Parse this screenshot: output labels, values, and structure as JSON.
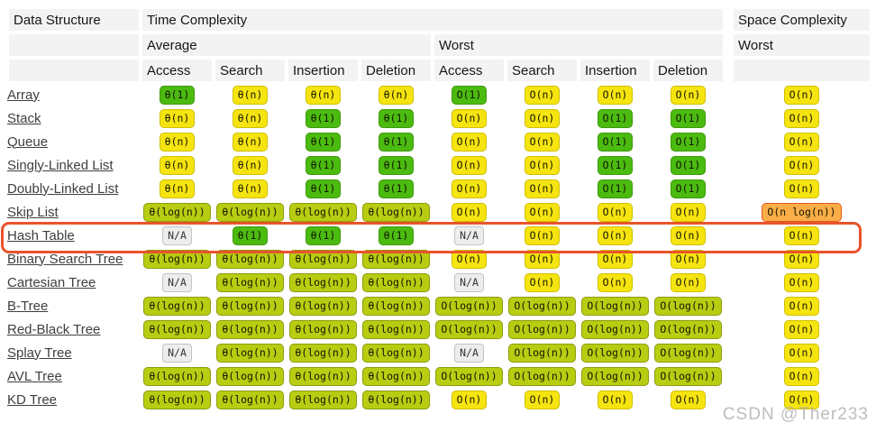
{
  "header": {
    "data_structure": "Data Structure",
    "time_complexity": "Time Complexity",
    "space_complexity": "Space Complexity",
    "average": "Average",
    "worst_time": "Worst",
    "worst_space": "Worst",
    "ops": [
      "Access",
      "Search",
      "Insertion",
      "Deletion",
      "Access",
      "Search",
      "Insertion",
      "Deletion"
    ]
  },
  "colors": {
    "green": "#4bbb10",
    "yellow": "#f6e410",
    "yellow_green": "#b8cc12",
    "orange": "#fbae47",
    "na_gray": "#ededed",
    "highlight": "#e9542a",
    "header_bg": "#f3f3f3"
  },
  "highlighted_row": "Hash Table",
  "watermark": "CSDN @Ther233",
  "chart_data": {
    "type": "table",
    "column_groups": [
      "Data Structure",
      "Time Complexity (Average: Access/Search/Insertion/Deletion, Worst: Access/Search/Insertion/Deletion)",
      "Space Complexity (Worst)"
    ],
    "columns": [
      "Data Structure",
      "Avg Access",
      "Avg Search",
      "Avg Insertion",
      "Avg Deletion",
      "Worst Access",
      "Worst Search",
      "Worst Insertion",
      "Worst Deletion",
      "Space Worst"
    ],
    "rows": [
      {
        "name": "Array",
        "highlight": false,
        "cells": [
          {
            "t": "θ(1)",
            "l": "green"
          },
          {
            "t": "θ(n)",
            "l": "yellow"
          },
          {
            "t": "θ(n)",
            "l": "yellow"
          },
          {
            "t": "θ(n)",
            "l": "yellow"
          },
          {
            "t": "O(1)",
            "l": "green"
          },
          {
            "t": "O(n)",
            "l": "yellow"
          },
          {
            "t": "O(n)",
            "l": "yellow"
          },
          {
            "t": "O(n)",
            "l": "yellow"
          },
          {
            "t": "O(n)",
            "l": "yellow"
          }
        ]
      },
      {
        "name": "Stack",
        "highlight": false,
        "cells": [
          {
            "t": "θ(n)",
            "l": "yellow"
          },
          {
            "t": "θ(n)",
            "l": "yellow"
          },
          {
            "t": "θ(1)",
            "l": "green"
          },
          {
            "t": "θ(1)",
            "l": "green"
          },
          {
            "t": "O(n)",
            "l": "yellow"
          },
          {
            "t": "O(n)",
            "l": "yellow"
          },
          {
            "t": "O(1)",
            "l": "green"
          },
          {
            "t": "O(1)",
            "l": "green"
          },
          {
            "t": "O(n)",
            "l": "yellow"
          }
        ]
      },
      {
        "name": "Queue",
        "highlight": false,
        "cells": [
          {
            "t": "θ(n)",
            "l": "yellow"
          },
          {
            "t": "θ(n)",
            "l": "yellow"
          },
          {
            "t": "θ(1)",
            "l": "green"
          },
          {
            "t": "θ(1)",
            "l": "green"
          },
          {
            "t": "O(n)",
            "l": "yellow"
          },
          {
            "t": "O(n)",
            "l": "yellow"
          },
          {
            "t": "O(1)",
            "l": "green"
          },
          {
            "t": "O(1)",
            "l": "green"
          },
          {
            "t": "O(n)",
            "l": "yellow"
          }
        ]
      },
      {
        "name": "Singly-Linked List",
        "highlight": false,
        "cells": [
          {
            "t": "θ(n)",
            "l": "yellow"
          },
          {
            "t": "θ(n)",
            "l": "yellow"
          },
          {
            "t": "θ(1)",
            "l": "green"
          },
          {
            "t": "θ(1)",
            "l": "green"
          },
          {
            "t": "O(n)",
            "l": "yellow"
          },
          {
            "t": "O(n)",
            "l": "yellow"
          },
          {
            "t": "O(1)",
            "l": "green"
          },
          {
            "t": "O(1)",
            "l": "green"
          },
          {
            "t": "O(n)",
            "l": "yellow"
          }
        ]
      },
      {
        "name": "Doubly-Linked List",
        "highlight": false,
        "cells": [
          {
            "t": "θ(n)",
            "l": "yellow"
          },
          {
            "t": "θ(n)",
            "l": "yellow"
          },
          {
            "t": "θ(1)",
            "l": "green"
          },
          {
            "t": "θ(1)",
            "l": "green"
          },
          {
            "t": "O(n)",
            "l": "yellow"
          },
          {
            "t": "O(n)",
            "l": "yellow"
          },
          {
            "t": "O(1)",
            "l": "green"
          },
          {
            "t": "O(1)",
            "l": "green"
          },
          {
            "t": "O(n)",
            "l": "yellow"
          }
        ]
      },
      {
        "name": "Skip List",
        "highlight": false,
        "cells": [
          {
            "t": "θ(log(n))",
            "l": "yg"
          },
          {
            "t": "θ(log(n))",
            "l": "yg"
          },
          {
            "t": "θ(log(n))",
            "l": "yg"
          },
          {
            "t": "θ(log(n))",
            "l": "yg"
          },
          {
            "t": "O(n)",
            "l": "yellow"
          },
          {
            "t": "O(n)",
            "l": "yellow"
          },
          {
            "t": "O(n)",
            "l": "yellow"
          },
          {
            "t": "O(n)",
            "l": "yellow"
          },
          {
            "t": "O(n log(n))",
            "l": "orange"
          }
        ]
      },
      {
        "name": "Hash Table",
        "highlight": true,
        "cells": [
          {
            "t": "N/A",
            "l": "na"
          },
          {
            "t": "θ(1)",
            "l": "green"
          },
          {
            "t": "θ(1)",
            "l": "green"
          },
          {
            "t": "θ(1)",
            "l": "green"
          },
          {
            "t": "N/A",
            "l": "na"
          },
          {
            "t": "O(n)",
            "l": "yellow"
          },
          {
            "t": "O(n)",
            "l": "yellow"
          },
          {
            "t": "O(n)",
            "l": "yellow"
          },
          {
            "t": "O(n)",
            "l": "yellow"
          }
        ]
      },
      {
        "name": "Binary Search Tree",
        "highlight": false,
        "cells": [
          {
            "t": "θ(log(n))",
            "l": "yg"
          },
          {
            "t": "θ(log(n))",
            "l": "yg"
          },
          {
            "t": "θ(log(n))",
            "l": "yg"
          },
          {
            "t": "θ(log(n))",
            "l": "yg"
          },
          {
            "t": "O(n)",
            "l": "yellow"
          },
          {
            "t": "O(n)",
            "l": "yellow"
          },
          {
            "t": "O(n)",
            "l": "yellow"
          },
          {
            "t": "O(n)",
            "l": "yellow"
          },
          {
            "t": "O(n)",
            "l": "yellow"
          }
        ]
      },
      {
        "name": "Cartesian Tree",
        "highlight": false,
        "cells": [
          {
            "t": "N/A",
            "l": "na"
          },
          {
            "t": "θ(log(n))",
            "l": "yg"
          },
          {
            "t": "θ(log(n))",
            "l": "yg"
          },
          {
            "t": "θ(log(n))",
            "l": "yg"
          },
          {
            "t": "N/A",
            "l": "na"
          },
          {
            "t": "O(n)",
            "l": "yellow"
          },
          {
            "t": "O(n)",
            "l": "yellow"
          },
          {
            "t": "O(n)",
            "l": "yellow"
          },
          {
            "t": "O(n)",
            "l": "yellow"
          }
        ]
      },
      {
        "name": "B-Tree",
        "highlight": false,
        "cells": [
          {
            "t": "θ(log(n))",
            "l": "yg"
          },
          {
            "t": "θ(log(n))",
            "l": "yg"
          },
          {
            "t": "θ(log(n))",
            "l": "yg"
          },
          {
            "t": "θ(log(n))",
            "l": "yg"
          },
          {
            "t": "O(log(n))",
            "l": "yg"
          },
          {
            "t": "O(log(n))",
            "l": "yg"
          },
          {
            "t": "O(log(n))",
            "l": "yg"
          },
          {
            "t": "O(log(n))",
            "l": "yg"
          },
          {
            "t": "O(n)",
            "l": "yellow"
          }
        ]
      },
      {
        "name": "Red-Black Tree",
        "highlight": false,
        "cells": [
          {
            "t": "θ(log(n))",
            "l": "yg"
          },
          {
            "t": "θ(log(n))",
            "l": "yg"
          },
          {
            "t": "θ(log(n))",
            "l": "yg"
          },
          {
            "t": "θ(log(n))",
            "l": "yg"
          },
          {
            "t": "O(log(n))",
            "l": "yg"
          },
          {
            "t": "O(log(n))",
            "l": "yg"
          },
          {
            "t": "O(log(n))",
            "l": "yg"
          },
          {
            "t": "O(log(n))",
            "l": "yg"
          },
          {
            "t": "O(n)",
            "l": "yellow"
          }
        ]
      },
      {
        "name": "Splay Tree",
        "highlight": false,
        "cells": [
          {
            "t": "N/A",
            "l": "na"
          },
          {
            "t": "θ(log(n))",
            "l": "yg"
          },
          {
            "t": "θ(log(n))",
            "l": "yg"
          },
          {
            "t": "θ(log(n))",
            "l": "yg"
          },
          {
            "t": "N/A",
            "l": "na"
          },
          {
            "t": "O(log(n))",
            "l": "yg"
          },
          {
            "t": "O(log(n))",
            "l": "yg"
          },
          {
            "t": "O(log(n))",
            "l": "yg"
          },
          {
            "t": "O(n)",
            "l": "yellow"
          }
        ]
      },
      {
        "name": "AVL Tree",
        "highlight": false,
        "cells": [
          {
            "t": "θ(log(n))",
            "l": "yg"
          },
          {
            "t": "θ(log(n))",
            "l": "yg"
          },
          {
            "t": "θ(log(n))",
            "l": "yg"
          },
          {
            "t": "θ(log(n))",
            "l": "yg"
          },
          {
            "t": "O(log(n))",
            "l": "yg"
          },
          {
            "t": "O(log(n))",
            "l": "yg"
          },
          {
            "t": "O(log(n))",
            "l": "yg"
          },
          {
            "t": "O(log(n))",
            "l": "yg"
          },
          {
            "t": "O(n)",
            "l": "yellow"
          }
        ]
      },
      {
        "name": "KD Tree",
        "highlight": false,
        "cells": [
          {
            "t": "θ(log(n))",
            "l": "yg"
          },
          {
            "t": "θ(log(n))",
            "l": "yg"
          },
          {
            "t": "θ(log(n))",
            "l": "yg"
          },
          {
            "t": "θ(log(n))",
            "l": "yg"
          },
          {
            "t": "O(n)",
            "l": "yellow"
          },
          {
            "t": "O(n)",
            "l": "yellow"
          },
          {
            "t": "O(n)",
            "l": "yellow"
          },
          {
            "t": "O(n)",
            "l": "yellow"
          },
          {
            "t": "O(n)",
            "l": "yellow"
          }
        ]
      }
    ]
  }
}
